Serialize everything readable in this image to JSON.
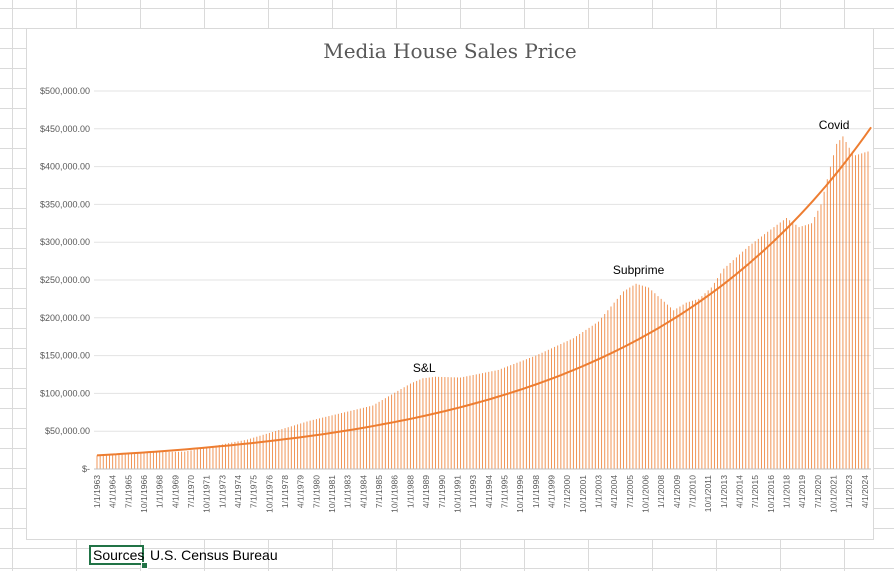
{
  "sheet": {
    "selected_cell_text": "Sources",
    "adjacent_cell_text": "U.S. Census Bureau"
  },
  "chart_data": {
    "type": "bar",
    "title": "Media House Sales Price",
    "xlabel": "",
    "ylabel": "",
    "ylim": [
      0,
      500000
    ],
    "y_ticks": [
      {
        "value": 0,
        "label": "$-"
      },
      {
        "value": 50000,
        "label": "$50,000.00"
      },
      {
        "value": 100000,
        "label": "$100,000.00"
      },
      {
        "value": 150000,
        "label": "$150,000.00"
      },
      {
        "value": 200000,
        "label": "$200,000.00"
      },
      {
        "value": 250000,
        "label": "$250,000.00"
      },
      {
        "value": 300000,
        "label": "$300,000.00"
      },
      {
        "value": 350000,
        "label": "$350,000.00"
      },
      {
        "value": 400000,
        "label": "$400,000.00"
      },
      {
        "value": 450000,
        "label": "$450,000.00"
      },
      {
        "value": 500000,
        "label": "$500,000.00"
      }
    ],
    "x_tick_labels": [
      "1/1/1963",
      "4/1/1964",
      "7/1/1965",
      "10/1/1966",
      "1/1/1968",
      "4/1/1969",
      "7/1/1970",
      "10/1/1971",
      "1/1/1973",
      "4/1/1974",
      "7/1/1975",
      "10/1/1976",
      "1/1/1978",
      "4/1/1979",
      "7/1/1980",
      "10/1/1981",
      "1/1/1983",
      "4/1/1984",
      "7/1/1985",
      "10/1/1986",
      "1/1/1988",
      "4/1/1989",
      "7/1/1990",
      "10/1/1991",
      "1/1/1993",
      "4/1/1994",
      "7/1/1995",
      "10/1/1996",
      "1/1/1998",
      "4/1/1999",
      "7/1/2000",
      "10/1/2001",
      "1/1/2003",
      "4/1/2004",
      "7/1/2005",
      "10/1/2006",
      "1/1/2008",
      "4/1/2009",
      "7/1/2010",
      "10/1/2011",
      "1/1/2013",
      "4/1/2014",
      "7/1/2015",
      "10/1/2016",
      "1/1/2018",
      "4/1/2019",
      "7/1/2020",
      "10/1/2021",
      "1/1/2023",
      "4/1/2024"
    ],
    "series": [
      {
        "type": "bar",
        "color": "#ED7D31",
        "frequency": "quarterly",
        "start": "1/1/1963",
        "end": "7/1/2024",
        "anchors": [
          [
            "1963",
            18000
          ],
          [
            "1966",
            22000
          ],
          [
            "1970",
            23000
          ],
          [
            "1975",
            39000
          ],
          [
            "1980",
            64000
          ],
          [
            "1985",
            84000
          ],
          [
            "1988",
            113000
          ],
          [
            "1989",
            120000
          ],
          [
            "1990",
            122000
          ],
          [
            "1992",
            121000
          ],
          [
            "1995",
            131000
          ],
          [
            "1998",
            150000
          ],
          [
            "2001",
            173000
          ],
          [
            "2003",
            195000
          ],
          [
            "2005",
            235000
          ],
          [
            "2006",
            245000
          ],
          [
            "2007",
            240000
          ],
          [
            "2008",
            225000
          ],
          [
            "2009",
            210000
          ],
          [
            "2010",
            220000
          ],
          [
            "2011",
            225000
          ],
          [
            "2012",
            240000
          ],
          [
            "2013",
            265000
          ],
          [
            "2015",
            295000
          ],
          [
            "2017",
            320000
          ],
          [
            "2018",
            332000
          ],
          [
            "2019",
            320000
          ],
          [
            "2020",
            325000
          ],
          [
            "2020.75",
            350000
          ],
          [
            "2021.5",
            400000
          ],
          [
            "2022",
            430000
          ],
          [
            "2022.5",
            440000
          ],
          [
            "2023",
            425000
          ],
          [
            "2023.5",
            415000
          ],
          [
            "2024.5",
            420000
          ]
        ]
      },
      {
        "type": "trendline",
        "kind": "exponential",
        "color": "#ED7D31",
        "points": [
          [
            "1963",
            18000
          ],
          [
            "2024.75",
            452000
          ]
        ]
      }
    ],
    "annotations": [
      {
        "text": "S&L",
        "x": "1989.1",
        "y": 128000
      },
      {
        "text": "Subprime",
        "x": "2006.2",
        "y": 258000
      },
      {
        "text": "Covid",
        "x": "2021.8",
        "y": 450000
      }
    ],
    "grid": true,
    "legend": "none"
  }
}
